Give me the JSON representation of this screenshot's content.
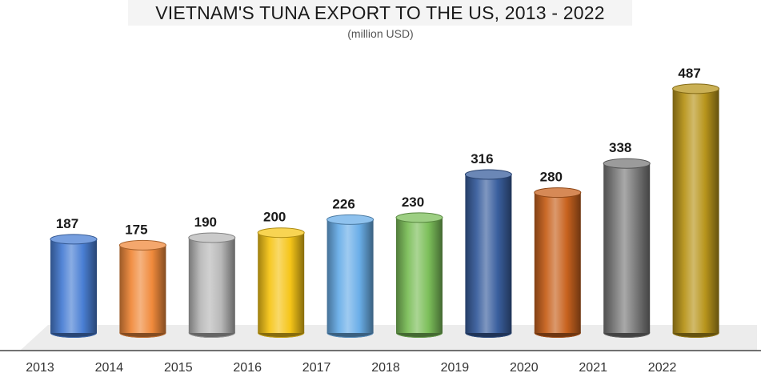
{
  "chart_data": {
    "type": "bar",
    "title": "VIETNAM'S TUNA EXPORT TO THE US, 2013 - 2022",
    "subtitle": "(million USD)",
    "xlabel": "",
    "ylabel": "",
    "ylim": [
      0,
      500
    ],
    "grid": false,
    "categories": [
      "2013",
      "2014",
      "2015",
      "2016",
      "2017",
      "2018",
      "2019",
      "2020",
      "2021",
      "2022"
    ],
    "values": [
      187,
      175,
      190,
      200,
      226,
      230,
      316,
      280,
      338,
      487
    ],
    "colors": [
      "#4a7fd4",
      "#f08a3c",
      "#b8b8b8",
      "#f5c518",
      "#6aaee8",
      "#7cbf5a",
      "#3a5f9e",
      "#c8621e",
      "#7a7a7a",
      "#b8951c"
    ]
  }
}
